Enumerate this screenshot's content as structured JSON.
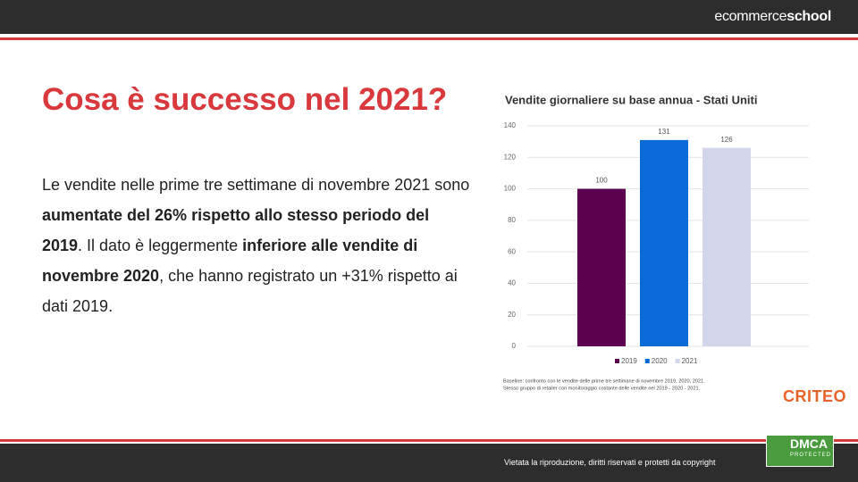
{
  "header": {
    "logo_light": "ecommerce",
    "logo_bold": "school"
  },
  "slide": {
    "title": "Cosa è successo nel 2021?",
    "paragraph": [
      {
        "text": "Le vendite nelle prime tre settimane di novembre 2021 sono ",
        "bold": false
      },
      {
        "text": "aumentate del 26% rispetto allo stesso periodo del 2019",
        "bold": true
      },
      {
        "text": ". Il dato è leggermente ",
        "bold": false
      },
      {
        "text": "inferiore alle vendite di novembre 2020",
        "bold": true
      },
      {
        "text": ", che hanno registrato un +31% rispetto ai dati 2019.",
        "bold": false
      }
    ],
    "brand": "CRITEO"
  },
  "chart_data": {
    "type": "bar",
    "title": "Vendite giornaliere su base annua - Stati Uniti",
    "categories": [
      null
    ],
    "series": [
      {
        "name": "2019",
        "color": "#5c0050",
        "values": [
          100
        ]
      },
      {
        "name": "2020",
        "color": "#0a6bd6",
        "values": [
          131
        ]
      },
      {
        "name": "2021",
        "color": "#d3d6ea",
        "values": [
          126
        ]
      }
    ],
    "ylim": [
      0,
      140
    ],
    "yticks": [
      0,
      20,
      40,
      60,
      80,
      100,
      120,
      140
    ],
    "grid": true,
    "notes": [
      "Baseline: confronto con le vendite delle prime tre settimane di novembre 2019, 2020, 2021.",
      "Stesso gruppo di retailer con monitoraggio costante delle vendite nel 2019 - 2020 - 2021."
    ]
  },
  "footer": {
    "text": "Vietata la riproduzione, diritti riservati e protetti da copyright",
    "badge": "DMCA",
    "badge_sub": "PROTECTED"
  }
}
